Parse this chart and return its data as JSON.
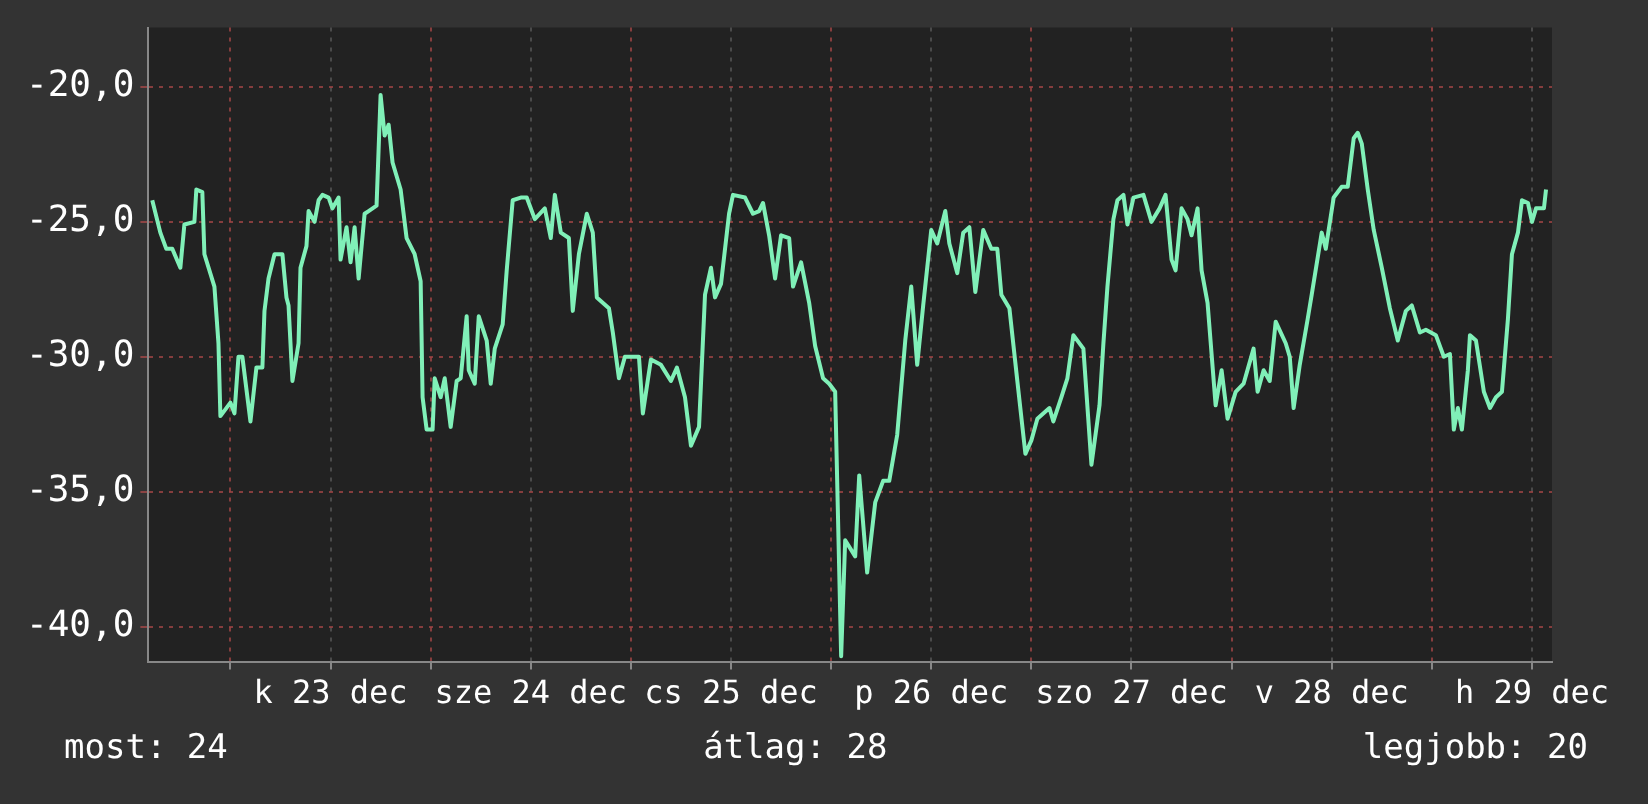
{
  "chart_data": {
    "type": "line",
    "color": "#80f0b8",
    "line_style": "solid",
    "marker": "none",
    "grid": true,
    "legend": false,
    "xlim": [
      "--12-22T14:10",
      "--12-29T14:24"
    ],
    "xticks": [
      {
        "value": "--12-23T00:00",
        "label": null
      },
      {
        "value": "--12-23T12:00",
        "label": "k 23 dec"
      },
      {
        "value": "--12-24T00:00",
        "label": null
      },
      {
        "value": "--12-24T12:00",
        "label": "sze 24 dec"
      },
      {
        "value": "--12-25T00:00",
        "label": null
      },
      {
        "value": "--12-25T12:00",
        "label": "cs 25 dec"
      },
      {
        "value": "--12-26T00:00",
        "label": null
      },
      {
        "value": "--12-26T12:00",
        "label": "p 26 dec"
      },
      {
        "value": "--12-27T00:00",
        "label": null
      },
      {
        "value": "--12-27T12:00",
        "label": "szo 27 dec"
      },
      {
        "value": "--12-28T00:00",
        "label": null
      },
      {
        "value": "--12-28T12:00",
        "label": "v 28 dec"
      },
      {
        "value": "--12-29T00:00",
        "label": null
      },
      {
        "value": "--12-29T12:00",
        "label": "h 29 dec"
      }
    ],
    "ylim": [
      -41.3,
      -17.8
    ],
    "yticks": [
      {
        "value": -40,
        "label": "-40,0"
      },
      {
        "value": -35,
        "label": "-35,0"
      },
      {
        "value": -30,
        "label": "-30,0"
      },
      {
        "value": -25,
        "label": "-25,0"
      },
      {
        "value": -20,
        "label": "-20,0"
      }
    ],
    "x": [
      "--12-22T14:38",
      "--12-22T15:36",
      "--12-22T16:19",
      "--12-22T17:02",
      "--12-22T18:00",
      "--12-22T18:29",
      "--12-22T19:41",
      "--12-22T19:55",
      "--12-22T20:38",
      "--12-22T20:53",
      "--12-22T22:05",
      "--12-22T22:34",
      "--12-22T22:48",
      "--12-23T00:00",
      "--12-23T00:29",
      "--12-23T00:58",
      "--12-23T01:26",
      "--12-23T02:24",
      "--12-23T03:07",
      "--12-23T03:50",
      "--12-23T04:05",
      "--12-23T04:34",
      "--12-23T05:17",
      "--12-23T06:14",
      "--12-23T06:43",
      "--12-23T06:58",
      "--12-23T07:26",
      "--12-23T08:10",
      "--12-23T08:24",
      "--12-23T09:07",
      "--12-23T09:22",
      "--12-23T10:05",
      "--12-23T10:34",
      "--12-23T11:02",
      "--12-23T11:46",
      "--12-23T12:14",
      "--12-23T12:58",
      "--12-23T13:12",
      "--12-23T13:55",
      "--12-23T14:24",
      "--12-23T14:53",
      "--12-23T15:22",
      "--12-23T16:05",
      "--12-23T16:34",
      "--12-23T17:31",
      "--12-23T18:00",
      "--12-23T18:29",
      "--12-23T18:58",
      "--12-23T19:26",
      "--12-23T20:24",
      "--12-23T21:07",
      "--12-23T22:05",
      "--12-23T22:48",
      "--12-23T23:02",
      "--12-23T23:31",
      "--12-24T00:14",
      "--12-24T00:29",
      "--12-24T01:12",
      "--12-24T01:41",
      "--12-24T02:24",
      "--12-24T03:07",
      "--12-24T03:36",
      "--12-24T04:19",
      "--12-24T04:34",
      "--12-24T05:17",
      "--12-24T05:46",
      "--12-24T06:43",
      "--12-24T07:12",
      "--12-24T07:41",
      "--12-24T08:38",
      "--12-24T09:07",
      "--12-24T09:50",
      "--12-24T10:48",
      "--12-24T11:31",
      "--12-24T12:29",
      "--12-24T13:41",
      "--12-24T14:24",
      "--12-24T14:53",
      "--12-24T15:36",
      "--12-24T16:34",
      "--12-24T17:02",
      "--12-24T17:46",
      "--12-24T18:43",
      "--12-24T19:26",
      "--12-24T19:55",
      "--12-24T21:22",
      "--12-24T21:50",
      "--12-24T22:34",
      "--12-24T23:17",
      "--12-25T00:14",
      "--12-25T00:58",
      "--12-25T01:26",
      "--12-25T02:24",
      "--12-25T03:36",
      "--12-25T04:48",
      "--12-25T05:31",
      "--12-25T06:29",
      "--12-25T07:12",
      "--12-25T08:10",
      "--12-25T08:53",
      "--12-25T09:36",
      "--12-25T10:05",
      "--12-25T10:48",
      "--12-25T11:46",
      "--12-25T12:14",
      "--12-25T13:41",
      "--12-25T14:38",
      "--12-25T15:22",
      "--12-25T15:50",
      "--12-25T16:34",
      "--12-25T17:17",
      "--12-25T18:00",
      "--12-25T18:58",
      "--12-25T19:26",
      "--12-25T20:24",
      "--12-25T21:22",
      "--12-25T22:05",
      "--12-25T23:02",
      "--12-25T23:46",
      "--12-26T00:29",
      "--12-26T01:12",
      "--12-26T01:41",
      "--12-26T02:53",
      "--12-26T03:22",
      "--12-26T04:19",
      "--12-26T05:17",
      "--12-26T06:14",
      "--12-26T06:58",
      "--12-26T07:55",
      "--12-26T08:53",
      "--12-26T09:36",
      "--12-26T10:19",
      "--12-26T11:02",
      "--12-26T12:00",
      "--12-26T12:43",
      "--12-26T13:41",
      "--12-26T14:10",
      "--12-26T15:07",
      "--12-26T15:50",
      "--12-26T16:34",
      "--12-26T17:17",
      "--12-26T18:14",
      "--12-26T19:12",
      "--12-26T19:55",
      "--12-26T20:24",
      "--12-26T21:22",
      "--12-26T22:19",
      "--12-26T23:17",
      "--12-27T00:00",
      "--12-27T00:43",
      "--12-27T02:10",
      "--12-27T02:38",
      "--12-27T03:36",
      "--12-27T04:19",
      "--12-27T05:02",
      "--12-27T06:14",
      "--12-27T07:12",
      "--12-27T08:10",
      "--12-27T08:38",
      "--12-27T09:07",
      "--12-27T09:50",
      "--12-27T10:19",
      "--12-27T11:02",
      "--12-27T11:31",
      "--12-27T12:14",
      "--12-27T13:26",
      "--12-27T14:24",
      "--12-27T15:22",
      "--12-27T16:05",
      "--12-27T16:48",
      "--12-27T17:17",
      "--12-27T18:00",
      "--12-27T18:43",
      "--12-27T19:12",
      "--12-27T19:55",
      "--12-27T20:24",
      "--12-27T21:07",
      "--12-27T22:05",
      "--12-27T22:48",
      "--12-27T23:31",
      "--12-28T00:29",
      "--12-28T01:26",
      "--12-28T02:38",
      "--12-28T03:07",
      "--12-28T03:50",
      "--12-28T04:34",
      "--12-28T05:17",
      "--12-28T06:29",
      "--12-28T06:58",
      "--12-28T07:26",
      "--12-28T08:10",
      "--12-28T09:07",
      "--12-28T09:36",
      "--12-28T10:48",
      "--12-28T11:17",
      "--12-28T12:14",
      "--12-28T13:12",
      "--12-28T13:55",
      "--12-28T14:38",
      "--12-28T15:07",
      "--12-28T15:36",
      "--12-28T16:19",
      "--12-28T17:02",
      "--12-28T18:00",
      "--12-28T18:58",
      "--12-28T19:55",
      "--12-28T20:53",
      "--12-28T21:36",
      "--12-28T22:34",
      "--12-28T23:17",
      "--12-29T00:29",
      "--12-29T01:26",
      "--12-29T02:10",
      "--12-29T02:38",
      "--12-29T03:07",
      "--12-29T03:36",
      "--12-29T04:19",
      "--12-29T04:34",
      "--12-29T05:17",
      "--12-29T06:14",
      "--12-29T06:58",
      "--12-29T07:41",
      "--12-29T08:24",
      "--12-29T09:07",
      "--12-29T09:36",
      "--12-29T10:19",
      "--12-29T10:48",
      "--12-29T11:31",
      "--12-29T12:00",
      "--12-29T12:29",
      "--12-29T13:26",
      "--12-29T13:41"
    ],
    "values": [
      -24.2,
      -25.4,
      -26.0,
      -26.0,
      -26.7,
      -25.1,
      -25.0,
      -23.8,
      -23.9,
      -26.2,
      -27.4,
      -29.5,
      -32.2,
      -31.7,
      -32.1,
      -30.0,
      -30.0,
      -32.4,
      -30.4,
      -30.4,
      -28.3,
      -27.1,
      -26.2,
      -26.2,
      -27.8,
      -28.1,
      -30.9,
      -29.5,
      -26.7,
      -25.9,
      -24.6,
      -25.0,
      -24.2,
      -24.0,
      -24.1,
      -24.5,
      -24.1,
      -26.4,
      -25.2,
      -26.5,
      -25.2,
      -27.1,
      -24.7,
      -24.6,
      -24.4,
      -20.3,
      -21.8,
      -21.4,
      -22.8,
      -23.8,
      -25.6,
      -26.2,
      -27.2,
      -31.5,
      -32.7,
      -32.7,
      -30.8,
      -31.5,
      -30.8,
      -32.6,
      -30.9,
      -30.8,
      -28.5,
      -30.5,
      -31.0,
      -28.5,
      -29.4,
      -31.0,
      -29.7,
      -28.8,
      -26.8,
      -24.2,
      -24.1,
      -24.1,
      -24.9,
      -24.5,
      -25.6,
      -24.0,
      -25.4,
      -25.6,
      -28.3,
      -26.2,
      -24.7,
      -25.4,
      -27.8,
      -28.2,
      -29.1,
      -30.8,
      -30.0,
      -30.0,
      -30.0,
      -32.1,
      -30.1,
      -30.3,
      -30.9,
      -30.4,
      -31.5,
      -33.3,
      -32.6,
      -27.7,
      -26.7,
      -27.8,
      -27.3,
      -24.7,
      -24.0,
      -24.1,
      -24.7,
      -24.6,
      -24.3,
      -25.5,
      -27.1,
      -25.5,
      -25.6,
      -27.4,
      -26.5,
      -28.0,
      -29.6,
      -30.8,
      -31.0,
      -31.3,
      -41.1,
      -36.8,
      -37.4,
      -34.4,
      -38.0,
      -35.4,
      -34.6,
      -34.6,
      -32.9,
      -29.4,
      -27.4,
      -30.3,
      -28.1,
      -25.3,
      -25.8,
      -24.6,
      -25.8,
      -26.9,
      -25.4,
      -25.2,
      -27.6,
      -25.3,
      -26.0,
      -26.0,
      -27.7,
      -28.2,
      -30.9,
      -33.6,
      -33.1,
      -32.3,
      -31.9,
      -32.4,
      -31.5,
      -30.8,
      -29.2,
      -29.7,
      -34.0,
      -31.8,
      -29.5,
      -27.4,
      -24.9,
      -24.2,
      -24.0,
      -25.1,
      -24.1,
      -24.0,
      -25.0,
      -24.5,
      -24.0,
      -26.4,
      -26.8,
      -24.5,
      -24.9,
      -25.5,
      -24.5,
      -26.8,
      -28.0,
      -31.8,
      -30.5,
      -32.3,
      -31.3,
      -31.0,
      -29.7,
      -31.3,
      -30.5,
      -30.9,
      -28.7,
      -29.5,
      -30.0,
      -31.9,
      -30.3,
      -28.6,
      -27.7,
      -25.4,
      -26.0,
      -24.1,
      -23.7,
      -23.7,
      -21.9,
      -21.7,
      -22.1,
      -23.8,
      -25.3,
      -26.7,
      -28.2,
      -29.4,
      -28.3,
      -28.1,
      -29.1,
      -29.0,
      -29.2,
      -30.0,
      -29.9,
      -32.7,
      -31.9,
      -32.7,
      -30.5,
      -29.2,
      -29.4,
      -31.3,
      -31.9,
      -31.5,
      -31.3,
      -28.6,
      -26.2,
      -25.4,
      -24.2,
      -24.3,
      -25.0,
      -24.5,
      -24.5,
      -23.8
    ],
    "annotations": [
      "most: 24",
      "átlag: 28",
      "legjobb: 20"
    ]
  }
}
